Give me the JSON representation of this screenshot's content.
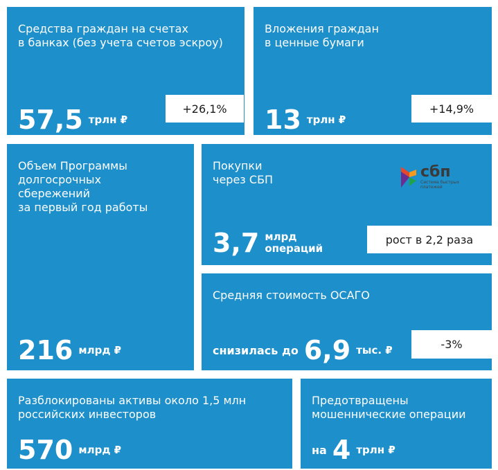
{
  "tiles": [
    {
      "title": [
        "Средства граждан на счетах",
        "в банках (без учета счетов эскроу)"
      ],
      "value": "57,5",
      "unit": [
        "трлн ₽"
      ],
      "badge": "+26,1%"
    },
    {
      "title": [
        "Вложения граждан",
        "в ценные бумаги"
      ],
      "value": "13",
      "unit": [
        "трлн ₽"
      ],
      "badge": "+14,9%"
    },
    {
      "title": [
        "Объем Программы",
        "долгосрочных",
        "сбережений",
        "за первый год работы"
      ],
      "value": "216",
      "unit": [
        "млрд ₽"
      ]
    },
    {
      "title": [
        "Покупки",
        "через СБП"
      ],
      "value": "3,7",
      "unit": [
        "млрд",
        "операций"
      ],
      "badge": "рост в 2,2 раза",
      "logo": {
        "name": "сбп",
        "caption": "Система быстрых платежей"
      }
    },
    {
      "title": [
        "Средняя стоимость ОСАГО"
      ],
      "prefix": "снизилась до",
      "value": "6,9",
      "unit": [
        "тыс. ₽"
      ],
      "badge": "-3%"
    },
    {
      "title": [
        "Разблокированы активы около 1,5 млн",
        "российских инвесторов"
      ],
      "value": "570",
      "unit": [
        "млрд ₽"
      ]
    },
    {
      "title": [
        "Предотвращены",
        "мошеннические операции"
      ],
      "prefix": "на",
      "value": "4",
      "unit": [
        "трлн ₽"
      ]
    }
  ]
}
